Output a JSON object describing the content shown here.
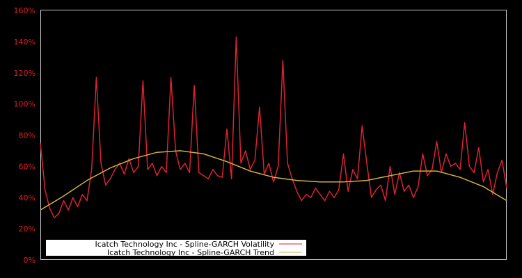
{
  "chart_data": {
    "type": "line",
    "title": "",
    "xlabel": "",
    "ylabel": "",
    "ylim": [
      0,
      160
    ],
    "yticks": [
      "0%",
      "20%",
      "40%",
      "60%",
      "80%",
      "100%",
      "120%",
      "140%",
      "160%"
    ],
    "ytick_values": [
      0,
      20,
      40,
      60,
      80,
      100,
      120,
      140,
      160
    ],
    "grid": false,
    "legend_position": "lower-left",
    "background": "#000000",
    "axis_color": "#cccccc",
    "tick_label_color": "#e0202a",
    "series": [
      {
        "name": "Icatch Technology Inc - Spline-GARCH Volatility",
        "color": "#dd2233",
        "x": [
          0,
          1,
          2,
          3,
          4,
          5,
          6,
          7,
          8,
          9,
          10,
          11,
          12,
          13,
          14,
          15,
          16,
          17,
          18,
          19,
          20,
          21,
          22,
          23,
          24,
          25,
          26,
          27,
          28,
          29,
          30,
          31,
          32,
          33,
          34,
          35,
          36,
          37,
          38,
          39,
          40,
          41,
          42,
          43,
          44,
          45,
          46,
          47,
          48,
          49,
          50,
          51,
          52,
          53,
          54,
          55,
          56,
          57,
          58,
          59,
          60,
          61,
          62,
          63,
          64,
          65,
          66,
          67,
          68,
          69,
          70,
          71,
          72,
          73,
          74,
          75,
          76,
          77,
          78,
          79,
          80,
          81,
          82,
          83,
          84,
          85,
          86,
          87,
          88,
          89,
          90,
          91,
          92,
          93,
          94,
          95,
          96,
          97,
          98,
          99,
          100
        ],
        "values": [
          75,
          45,
          33,
          27,
          30,
          38,
          32,
          40,
          34,
          42,
          38,
          58,
          117,
          62,
          48,
          52,
          58,
          62,
          55,
          65,
          56,
          60,
          115,
          58,
          62,
          54,
          60,
          56,
          117,
          70,
          58,
          62,
          56,
          112,
          56,
          54,
          52,
          58,
          54,
          53,
          84,
          52,
          143,
          62,
          70,
          58,
          64,
          98,
          55,
          62,
          50,
          60,
          128,
          62,
          52,
          44,
          38,
          42,
          40,
          46,
          42,
          38,
          44,
          40,
          45,
          68,
          44,
          58,
          52,
          86,
          62,
          40,
          45,
          48,
          38,
          60,
          42,
          56,
          44,
          48,
          40,
          47,
          68,
          54,
          58,
          76,
          56,
          68,
          60,
          62,
          58,
          88,
          60,
          56,
          72,
          50,
          58,
          42,
          56,
          64,
          46
        ],
        "note": "values are approximate readings sampled at 101 evenly spaced positions across the x-axis; the actual series contains many more points"
      },
      {
        "name": "Icatch Technology Inc - Spline-GARCH Trend",
        "color": "#d4b03a",
        "x": [
          0,
          5,
          10,
          15,
          20,
          25,
          30,
          35,
          40,
          45,
          50,
          55,
          60,
          65,
          70,
          75,
          80,
          85,
          90,
          95,
          100
        ],
        "values": [
          32,
          41,
          51,
          59,
          65,
          69,
          70,
          68,
          63,
          57,
          53,
          51,
          50,
          50,
          51,
          54,
          57,
          57,
          53,
          47,
          38
        ]
      }
    ]
  },
  "legend": {
    "items": [
      {
        "label": "Icatch Technology Inc - Spline-GARCH Volatility",
        "color": "#dd2233"
      },
      {
        "label": "Icatch Technology Inc - Spline-GARCH Trend",
        "color": "#d4b03a"
      }
    ]
  }
}
